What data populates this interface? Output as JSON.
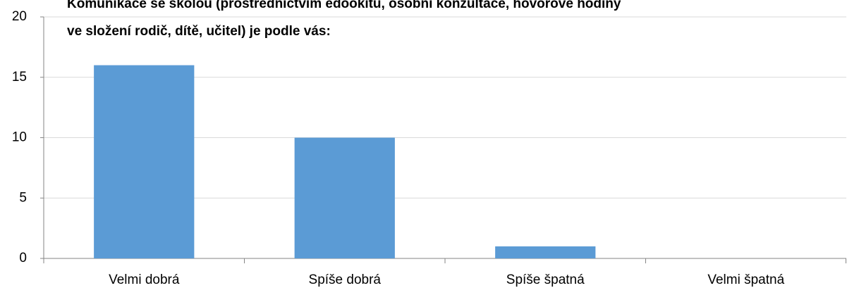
{
  "chart_data": {
    "type": "bar",
    "title": [
      "Komunikace se školou (prostřednictvím edookitu, osobní konzultace, hovorové hodiny",
      "ve složení rodič, dítě, učitel) je podle vás:"
    ],
    "categories": [
      "Velmi dobrá",
      "Spíše dobrá",
      "Spíše špatná",
      "Velmi špatná"
    ],
    "values": [
      16,
      10,
      1,
      0
    ],
    "color": "#5b9bd5",
    "ylim": [
      0,
      20
    ],
    "yticks": [
      0,
      5,
      10,
      15,
      20
    ],
    "grid": true
  }
}
